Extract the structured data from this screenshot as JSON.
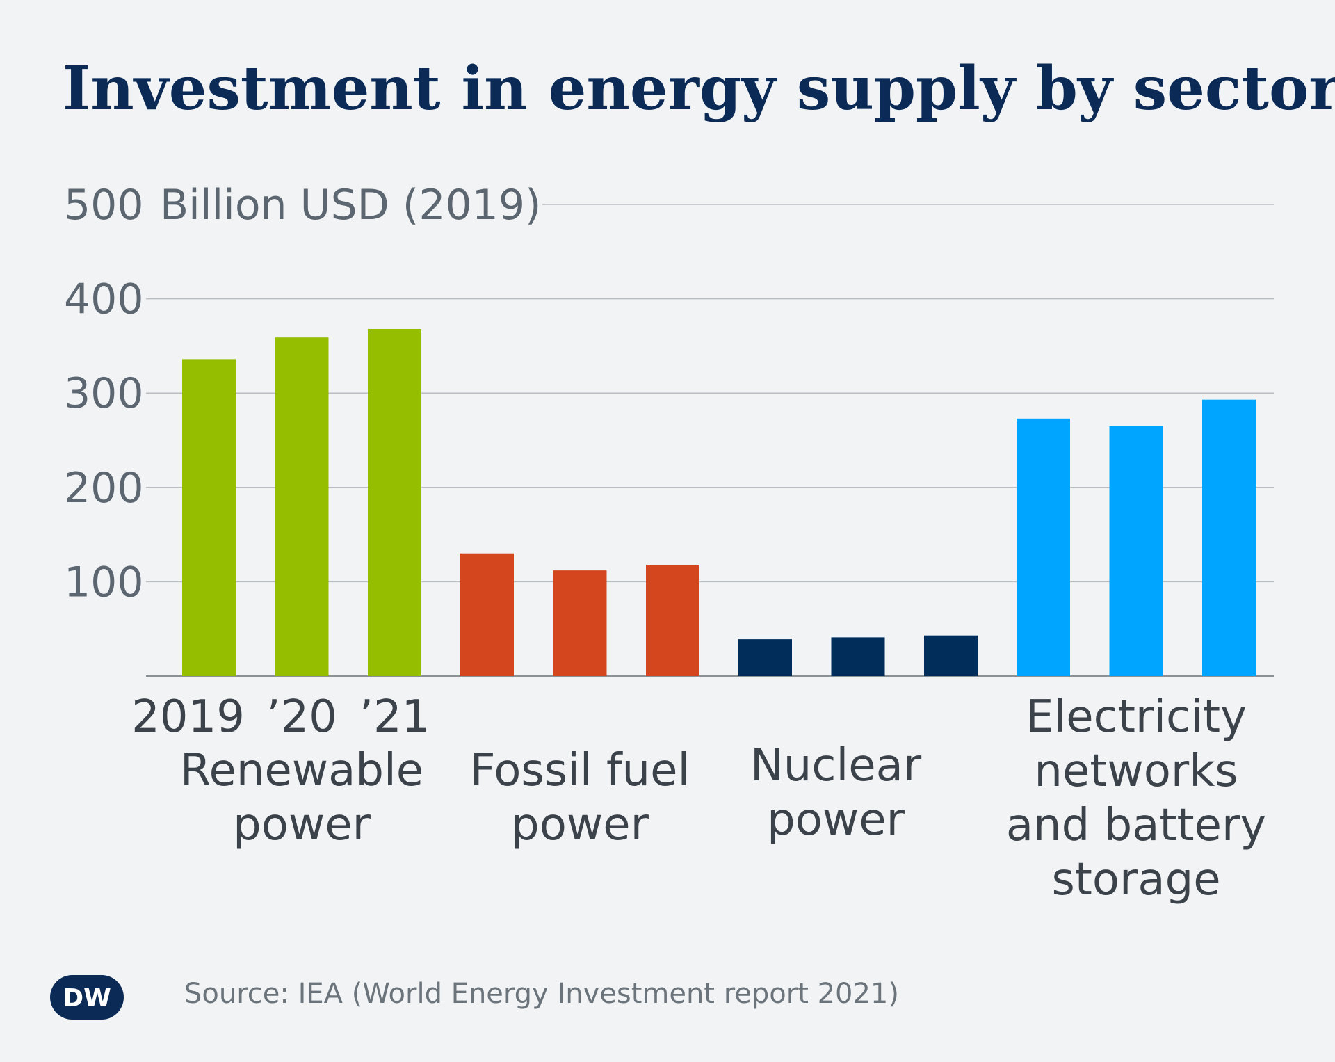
{
  "title": "Investment in energy supply by sector",
  "source": "Source: IEA (World Energy Investment report 2021)",
  "logo": {
    "text": "DW",
    "bg_color": "#0b2a56",
    "fg_color": "#ffffff"
  },
  "chart_data": {
    "type": "bar",
    "title": "Investment in energy supply by sector",
    "ylabel": "Billion USD (2019)",
    "ylim": [
      0,
      500
    ],
    "yticks": [
      100,
      200,
      300,
      400,
      500
    ],
    "grid": true,
    "year_labels": [
      "2019",
      "’20",
      "’21"
    ],
    "groups": [
      {
        "category": "Renewable power",
        "label_lines": [
          "Renewable",
          "power"
        ],
        "color": "#96be00",
        "values": [
          336,
          359,
          368
        ]
      },
      {
        "category": "Fossil fuel power",
        "label_lines": [
          "Fossil fuel",
          "power"
        ],
        "color": "#d3461e",
        "values": [
          130,
          112,
          118
        ]
      },
      {
        "category": "Nuclear power",
        "label_lines": [
          "Nuclear",
          "power"
        ],
        "color": "#002d5a",
        "values": [
          39,
          41,
          43
        ]
      },
      {
        "category": "Electricity networks and battery storage",
        "label_lines": [
          "Electricity",
          "networks",
          "and battery",
          "storage"
        ],
        "color": "#00a5ff",
        "values": [
          273,
          265,
          293
        ]
      }
    ]
  }
}
